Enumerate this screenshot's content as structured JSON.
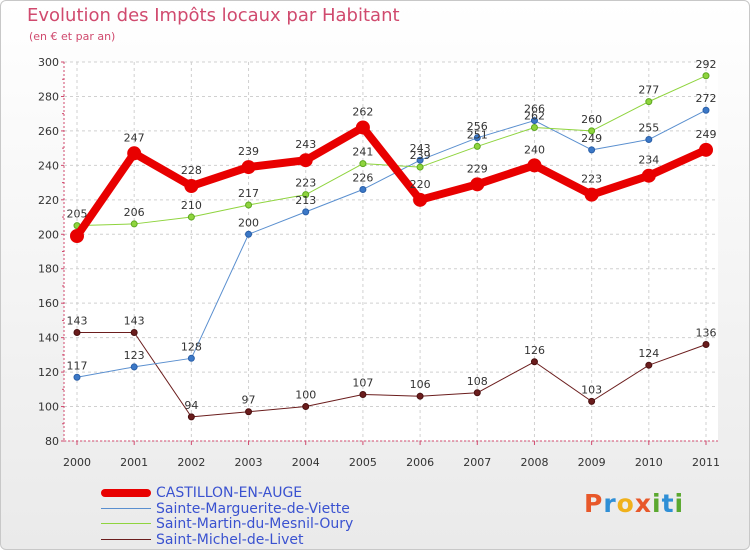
{
  "header": {
    "title": "Evolution des Impôts locaux par Habitant",
    "subtitle": "(en € et par an)"
  },
  "brand": {
    "logo_text": "Proxiti",
    "logo_colors": [
      "#e8582a",
      "#2f8fd6",
      "#f0b11b",
      "#e8582a",
      "#5aa82f",
      "#2f8fd6",
      "#5aa82f"
    ]
  },
  "chart_data": {
    "type": "line",
    "title": "Evolution des Impôts locaux par Habitant",
    "subtitle": "(en € et par an)",
    "xlabel": "",
    "ylabel": "",
    "categories": [
      "2000",
      "2001",
      "2002",
      "2003",
      "2004",
      "2005",
      "2006",
      "2007",
      "2008",
      "2009",
      "2010",
      "2011"
    ],
    "ylim": [
      80,
      300
    ],
    "yticks": [
      80,
      100,
      120,
      140,
      160,
      180,
      200,
      220,
      240,
      260,
      280,
      300
    ],
    "grid": true,
    "series": [
      {
        "name": "CASTILLON-EN-AUGE",
        "color": "#e80000",
        "values": [
          199,
          247,
          228,
          239,
          243,
          262,
          220,
          229,
          240,
          223,
          234,
          249
        ],
        "labels": [
          "",
          "247",
          "228",
          "239",
          "243",
          "262",
          "220",
          "229",
          "240",
          "223",
          "234",
          "249"
        ]
      },
      {
        "name": "Sainte-Marguerite-de-Viette",
        "color": "#5a8fcf",
        "values": [
          117,
          123,
          128,
          200,
          213,
          226,
          243,
          256,
          266,
          249,
          255,
          272
        ],
        "labels": [
          "117",
          "123",
          "128",
          "200",
          "213",
          "226",
          "243",
          "256",
          "266",
          "249",
          "255",
          "272"
        ]
      },
      {
        "name": "Saint-Martin-du-Mesnil-Oury",
        "color": "#8fd43e",
        "values": [
          205,
          206,
          210,
          217,
          223,
          241,
          239,
          251,
          262,
          260,
          277,
          292
        ],
        "labels": [
          "205",
          "206",
          "210",
          "217",
          "223",
          "241",
          "239",
          "251",
          "262",
          "260",
          "277",
          "292"
        ]
      },
      {
        "name": "Saint-Michel-de-Livet",
        "color": "#6b1d1d",
        "values": [
          143,
          143,
          94,
          97,
          100,
          107,
          106,
          108,
          126,
          103,
          124,
          136
        ],
        "labels": [
          "143",
          "143",
          "94",
          "97",
          "100",
          "107",
          "106",
          "108",
          "126",
          "103",
          "124",
          "136"
        ]
      }
    ],
    "legend": [
      "CASTILLON-EN-AUGE",
      "Sainte-Marguerite-de-Viette",
      "Saint-Martin-du-Mesnil-Oury",
      "Saint-Michel-de-Livet"
    ],
    "legend_position": "bottom-left"
  }
}
